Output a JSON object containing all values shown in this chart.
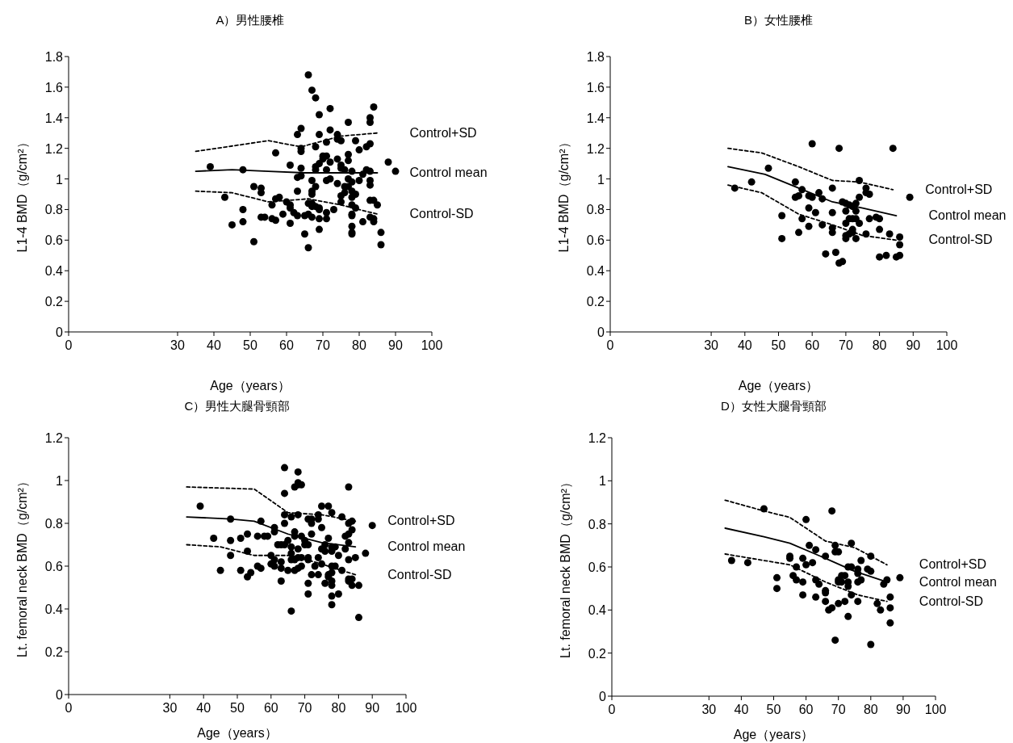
{
  "chart_data": [
    {
      "type": "scatter",
      "title": "A）男性腰椎",
      "xlabel": "Age（years）",
      "ylabel": "L1-4 BMD（g/cm²）",
      "xlim": [
        0,
        100
      ],
      "xticks": [
        0,
        30,
        40,
        50,
        60,
        70,
        80,
        90,
        100
      ],
      "ylim": [
        0,
        1.8
      ],
      "yticks": [
        0,
        0.2,
        0.4,
        0.6,
        0.8,
        1,
        1.2,
        1.4,
        1.6,
        1.8
      ],
      "legend": false,
      "series": [
        {
          "color": "#000000",
          "marker": "circle",
          "x": [
            39,
            43,
            45,
            48,
            48,
            48,
            51,
            51,
            53,
            53,
            53,
            54,
            56,
            56,
            57,
            57,
            57,
            58,
            59,
            60,
            61,
            61,
            61,
            61,
            62,
            63,
            63,
            63,
            63,
            64,
            64,
            64,
            64,
            64,
            65,
            65,
            66,
            66,
            66,
            66,
            67,
            67,
            67,
            67,
            67,
            67,
            67,
            68,
            68,
            68,
            68,
            68,
            68,
            69,
            69,
            69,
            69,
            69,
            69,
            69,
            70,
            70,
            71,
            71,
            71,
            71,
            71,
            71,
            72,
            72,
            72,
            72,
            73,
            74,
            74,
            74,
            74,
            75,
            75,
            75,
            75,
            75,
            76,
            76,
            76,
            77,
            77,
            77,
            77,
            77,
            78,
            78,
            78,
            78,
            78,
            78,
            78,
            78,
            78,
            78,
            79,
            79,
            79,
            80,
            80,
            81,
            81,
            82,
            82,
            83,
            83,
            83,
            83,
            83,
            83,
            83,
            83,
            84,
            84,
            84,
            84,
            85,
            86,
            86,
            88,
            90
          ],
          "values": [
            1.08,
            0.88,
            0.7,
            1.06,
            0.8,
            0.72,
            0.95,
            0.59,
            0.94,
            0.91,
            0.75,
            0.75,
            0.83,
            0.74,
            1.17,
            0.87,
            0.73,
            0.88,
            0.77,
            0.85,
            1.09,
            0.83,
            0.81,
            0.71,
            0.78,
            1.29,
            1.01,
            0.92,
            0.76,
            1.33,
            1.2,
            1.18,
            1.07,
            1.02,
            0.76,
            0.64,
            1.68,
            0.84,
            0.77,
            0.55,
            1.58,
            0.99,
            0.92,
            0.9,
            0.84,
            0.82,
            0.75,
            1.53,
            1.21,
            1.08,
            1.06,
            0.95,
            0.82,
            1.42,
            1.29,
            1.1,
            0.81,
            0.8,
            0.74,
            0.67,
            1.15,
            1.13,
            1.24,
            1.15,
            1.06,
            0.99,
            0.78,
            0.74,
            1.46,
            1.32,
            1.11,
            1.0,
            0.8,
            1.29,
            1.26,
            1.13,
            0.97,
            1.25,
            1.09,
            1.07,
            0.89,
            0.85,
            1.06,
            0.95,
            0.91,
            1.37,
            1.16,
            1.12,
            1.0,
            0.95,
            1.05,
            0.98,
            0.92,
            0.88,
            0.83,
            0.77,
            0.76,
            0.69,
            0.65,
            0.64,
            1.25,
            0.9,
            0.81,
            1.19,
            0.99,
            1.03,
            0.72,
            1.21,
            1.06,
            1.4,
            1.37,
            1.23,
            1.05,
            0.99,
            0.96,
            0.86,
            0.75,
            1.47,
            0.86,
            0.74,
            0.72,
            0.83,
            0.65,
            0.57,
            1.11,
            1.05
          ]
        },
        {
          "type": "line",
          "name": "Control+SD",
          "color": "#000000",
          "line_style": "dashed",
          "marker": "none",
          "x": [
            35,
            55,
            64,
            75,
            85
          ],
          "values": [
            1.18,
            1.25,
            1.21,
            1.28,
            1.3
          ]
        },
        {
          "type": "line",
          "name": "Control mean",
          "color": "#000000",
          "line_style": "solid",
          "marker": "none",
          "x": [
            35,
            45,
            55,
            65,
            75,
            85
          ],
          "values": [
            1.05,
            1.06,
            1.05,
            1.04,
            1.04,
            1.04
          ]
        },
        {
          "type": "line",
          "name": "Control-SD",
          "color": "#000000",
          "line_style": "dashed",
          "marker": "none",
          "x": [
            35,
            45,
            55,
            66,
            75,
            85
          ],
          "values": [
            0.92,
            0.91,
            0.85,
            0.87,
            0.83,
            0.77
          ]
        }
      ]
    },
    {
      "type": "scatter",
      "title": "B）女性腰椎",
      "xlabel": "Age（years）",
      "ylabel": "L1-4 BMD（g/cm²）",
      "xlim": [
        0,
        100
      ],
      "xticks": [
        0,
        30,
        40,
        50,
        60,
        70,
        80,
        90,
        100
      ],
      "ylim": [
        0,
        1.8
      ],
      "yticks": [
        0,
        0.2,
        0.4,
        0.6,
        0.8,
        1,
        1.2,
        1.4,
        1.6,
        1.8
      ],
      "legend": false,
      "series": [
        {
          "color": "#000000",
          "marker": "circle",
          "x": [
            37,
            42,
            47,
            51,
            51,
            55,
            55,
            56,
            56,
            57,
            57,
            59,
            59,
            59,
            60,
            60,
            61,
            62,
            63,
            63,
            64,
            66,
            66,
            66,
            66,
            67,
            68,
            68,
            69,
            69,
            70,
            70,
            70,
            70,
            70,
            71,
            71,
            71,
            72,
            72,
            72,
            72,
            73,
            73,
            73,
            73,
            74,
            74,
            74,
            76,
            76,
            76,
            77,
            77,
            79,
            80,
            80,
            80,
            82,
            83,
            84,
            85,
            86,
            86,
            86,
            89
          ],
          "values": [
            0.94,
            0.98,
            1.07,
            0.76,
            0.61,
            0.98,
            0.88,
            0.89,
            0.65,
            0.93,
            0.74,
            0.89,
            0.81,
            0.69,
            1.23,
            0.88,
            0.78,
            0.91,
            0.87,
            0.7,
            0.51,
            0.94,
            0.78,
            0.68,
            0.65,
            0.52,
            0.45,
            1.2,
            0.85,
            0.46,
            0.84,
            0.79,
            0.71,
            0.63,
            0.61,
            0.83,
            0.74,
            0.64,
            0.82,
            0.74,
            0.67,
            0.65,
            0.84,
            0.79,
            0.74,
            0.61,
            0.99,
            0.88,
            0.71,
            0.94,
            0.91,
            0.64,
            0.9,
            0.74,
            0.75,
            0.74,
            0.67,
            0.49,
            0.5,
            0.64,
            1.2,
            0.49,
            0.62,
            0.57,
            0.5,
            0.88
          ]
        },
        {
          "type": "line",
          "name": "Control+SD",
          "color": "#000000",
          "line_style": "dashed",
          "marker": "none",
          "x": [
            35,
            45,
            56,
            66,
            74,
            84
          ],
          "values": [
            1.2,
            1.17,
            1.08,
            0.99,
            0.98,
            0.93
          ]
        },
        {
          "type": "line",
          "name": "Control mean",
          "color": "#000000",
          "line_style": "solid",
          "marker": "none",
          "x": [
            35,
            46,
            56,
            66,
            75,
            85
          ],
          "values": [
            1.08,
            1.03,
            0.94,
            0.85,
            0.81,
            0.76
          ]
        },
        {
          "type": "line",
          "name": "Control-SD",
          "color": "#000000",
          "line_style": "dashed",
          "marker": "none",
          "x": [
            35,
            45,
            56,
            66,
            75,
            85
          ],
          "values": [
            0.96,
            0.91,
            0.77,
            0.7,
            0.63,
            0.6
          ]
        }
      ]
    },
    {
      "type": "scatter",
      "title": "C）男性大腿骨頸部",
      "xlabel": "Age（years）",
      "ylabel": "Lt. femoral neck BMD（g/cm²）",
      "xlim": [
        0,
        100
      ],
      "xticks": [
        0,
        30,
        40,
        50,
        60,
        70,
        80,
        90,
        100
      ],
      "ylim": [
        0,
        1.2
      ],
      "yticks": [
        0,
        0.2,
        0.4,
        0.6,
        0.8,
        1,
        1.2
      ],
      "legend": false,
      "series": [
        {
          "color": "#000000",
          "marker": "circle",
          "x": [
            39,
            43,
            45,
            48,
            48,
            48,
            51,
            51,
            53,
            53,
            53,
            54,
            56,
            56,
            57,
            57,
            58,
            59,
            60,
            60,
            61,
            61,
            61,
            61,
            62,
            63,
            63,
            63,
            63,
            64,
            64,
            64,
            64,
            64,
            65,
            65,
            66,
            66,
            66,
            66,
            66,
            67,
            67,
            67,
            67,
            67,
            68,
            68,
            68,
            68,
            68,
            68,
            68,
            69,
            69,
            69,
            69,
            70,
            70,
            71,
            71,
            71,
            71,
            71,
            71,
            72,
            72,
            72,
            72,
            73,
            74,
            74,
            74,
            74,
            75,
            75,
            75,
            75,
            76,
            76,
            76,
            77,
            77,
            77,
            77,
            78,
            78,
            78,
            78,
            78,
            78,
            78,
            78,
            78,
            79,
            79,
            80,
            80,
            81,
            81,
            82,
            82,
            83,
            83,
            83,
            83,
            83,
            83,
            83,
            84,
            84,
            84,
            84,
            85,
            86,
            86,
            88,
            90
          ],
          "values": [
            0.88,
            0.73,
            0.58,
            0.82,
            0.72,
            0.65,
            0.73,
            0.58,
            0.75,
            0.67,
            0.55,
            0.57,
            0.74,
            0.6,
            0.81,
            0.59,
            0.74,
            0.74,
            0.65,
            0.61,
            0.78,
            0.76,
            0.63,
            0.6,
            0.7,
            0.7,
            0.62,
            0.59,
            0.53,
            1.06,
            0.94,
            0.84,
            0.8,
            0.7,
            0.72,
            0.58,
            0.83,
            0.69,
            0.66,
            0.63,
            0.39,
            0.97,
            0.76,
            0.74,
            0.63,
            0.58,
            1.04,
            0.99,
            0.98,
            0.84,
            0.68,
            0.64,
            0.59,
            0.98,
            0.74,
            0.64,
            0.6,
            0.72,
            0.7,
            0.82,
            0.7,
            0.64,
            0.63,
            0.52,
            0.47,
            0.82,
            0.8,
            0.75,
            0.56,
            0.6,
            0.84,
            0.82,
            0.64,
            0.56,
            0.88,
            0.78,
            0.68,
            0.61,
            0.7,
            0.67,
            0.52,
            0.88,
            0.73,
            0.56,
            0.55,
            0.85,
            0.69,
            0.67,
            0.6,
            0.57,
            0.53,
            0.51,
            0.46,
            0.42,
            0.69,
            0.6,
            0.65,
            0.47,
            0.83,
            0.58,
            0.74,
            0.68,
            0.97,
            0.8,
            0.75,
            0.71,
            0.63,
            0.54,
            0.53,
            0.81,
            0.77,
            0.54,
            0.51,
            0.64,
            0.51,
            0.36,
            0.66,
            0.79
          ]
        },
        {
          "type": "line",
          "name": "Control+SD",
          "color": "#000000",
          "line_style": "dashed",
          "marker": "none",
          "x": [
            35,
            55,
            65,
            75,
            85
          ],
          "values": [
            0.97,
            0.96,
            0.85,
            0.84,
            0.81
          ]
        },
        {
          "type": "line",
          "name": "Control mean",
          "color": "#000000",
          "line_style": "solid",
          "marker": "none",
          "x": [
            35,
            48,
            55,
            65,
            75,
            85
          ],
          "values": [
            0.83,
            0.82,
            0.81,
            0.75,
            0.71,
            0.69
          ]
        },
        {
          "type": "line",
          "name": "Control-SD",
          "color": "#000000",
          "line_style": "dashed",
          "marker": "none",
          "x": [
            35,
            45,
            55,
            66,
            75,
            85
          ],
          "values": [
            0.7,
            0.69,
            0.65,
            0.65,
            0.61,
            0.56
          ]
        }
      ]
    },
    {
      "type": "scatter",
      "title": "D）女性大腿骨頸部",
      "xlabel": "Age（years）",
      "ylabel": "Lt. femoral neck BMD（g/cm²）",
      "xlim": [
        0,
        100
      ],
      "xticks": [
        0,
        30,
        40,
        50,
        60,
        70,
        80,
        90,
        100
      ],
      "ylim": [
        0,
        1.2
      ],
      "yticks": [
        0,
        0.2,
        0.4,
        0.6,
        0.8,
        1,
        1.2
      ],
      "legend": false,
      "series": [
        {
          "color": "#000000",
          "marker": "circle",
          "x": [
            37,
            42,
            47,
            51,
            51,
            55,
            55,
            56,
            57,
            57,
            59,
            59,
            59,
            60,
            60,
            61,
            62,
            63,
            63,
            63,
            64,
            66,
            66,
            66,
            66,
            67,
            68,
            68,
            69,
            69,
            69,
            70,
            70,
            70,
            70,
            71,
            71,
            72,
            72,
            73,
            73,
            73,
            73,
            74,
            74,
            74,
            76,
            76,
            76,
            76,
            77,
            77,
            79,
            80,
            80,
            80,
            82,
            83,
            84,
            85,
            86,
            86,
            86,
            89
          ],
          "values": [
            0.63,
            0.62,
            0.87,
            0.55,
            0.5,
            0.65,
            0.64,
            0.56,
            0.6,
            0.54,
            0.64,
            0.53,
            0.47,
            0.82,
            0.61,
            0.7,
            0.62,
            0.68,
            0.54,
            0.46,
            0.52,
            0.65,
            0.49,
            0.48,
            0.44,
            0.4,
            0.86,
            0.41,
            0.7,
            0.67,
            0.26,
            0.67,
            0.54,
            0.53,
            0.43,
            0.53,
            0.56,
            0.56,
            0.44,
            0.6,
            0.53,
            0.51,
            0.37,
            0.71,
            0.6,
            0.47,
            0.59,
            0.57,
            0.53,
            0.44,
            0.63,
            0.54,
            0.59,
            0.65,
            0.58,
            0.24,
            0.43,
            0.4,
            0.52,
            0.54,
            0.46,
            0.41,
            0.34,
            0.55
          ]
        },
        {
          "type": "line",
          "name": "Control+SD",
          "color": "#000000",
          "line_style": "dashed",
          "marker": "none",
          "x": [
            35,
            47,
            55,
            66,
            75,
            85
          ],
          "values": [
            0.91,
            0.86,
            0.83,
            0.72,
            0.69,
            0.61
          ]
        },
        {
          "type": "line",
          "name": "Control mean",
          "color": "#000000",
          "line_style": "solid",
          "marker": "none",
          "x": [
            35,
            47,
            55,
            66,
            75,
            85
          ],
          "values": [
            0.78,
            0.74,
            0.71,
            0.64,
            0.58,
            0.53
          ]
        },
        {
          "type": "line",
          "name": "Control-SD",
          "color": "#000000",
          "line_style": "dashed",
          "marker": "none",
          "x": [
            35,
            55,
            66,
            76,
            85
          ],
          "values": [
            0.66,
            0.61,
            0.53,
            0.47,
            0.44
          ]
        }
      ]
    }
  ]
}
